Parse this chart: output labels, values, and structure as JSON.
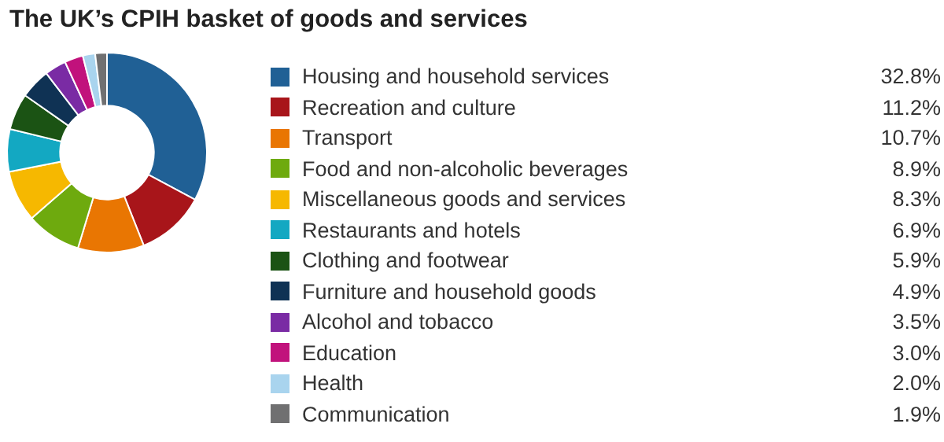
{
  "chart_data": {
    "type": "donut",
    "title": "The UK’s CPIH basket of goods and services",
    "categories": [
      "Housing and household services",
      "Recreation and culture",
      "Transport",
      "Food and non-alcoholic beverages",
      "Miscellaneous goods and services",
      "Restaurants and hotels",
      "Clothing and footwear",
      "Furniture and household goods",
      "Alcohol and tobacco",
      "Education",
      "Health",
      "Communication"
    ],
    "values": [
      32.8,
      11.2,
      10.7,
      8.9,
      8.3,
      6.9,
      5.9,
      4.9,
      3.5,
      3.0,
      2.0,
      1.9
    ],
    "value_labels": [
      "32.8%",
      "11.2%",
      "10.7%",
      "8.9%",
      "8.3%",
      "6.9%",
      "5.9%",
      "4.9%",
      "3.5%",
      "3.0%",
      "2.0%",
      "1.9%"
    ],
    "colors": [
      "#206095",
      "#a8151a",
      "#e97602",
      "#6eaa0e",
      "#f6b800",
      "#13a8c2",
      "#1b5314",
      "#0f3254",
      "#7a2ba4",
      "#c1127c",
      "#a9d4ee",
      "#707071"
    ],
    "legend": "right"
  }
}
